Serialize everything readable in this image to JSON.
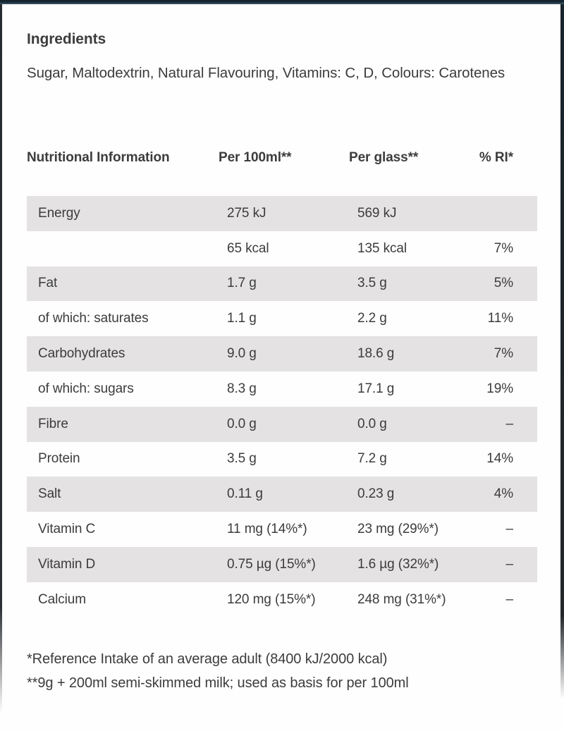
{
  "ingredients": {
    "title": "Ingredients",
    "text": "Sugar, Maltodextrin, Natural Flavouring, Vitamins: C, D, Colours: Carotenes"
  },
  "table": {
    "headers": [
      "Nutritional Information",
      "Per 100ml**",
      "Per glass**",
      "% RI*"
    ],
    "rows": [
      {
        "label": "Energy",
        "per100": "275 kJ",
        "glass": "569 kJ",
        "ri": "",
        "shaded": true
      },
      {
        "label": "",
        "per100": "65 kcal",
        "glass": "135 kcal",
        "ri": "7%",
        "shaded": false
      },
      {
        "label": "Fat",
        "per100": "1.7 g",
        "glass": "3.5 g",
        "ri": "5%",
        "shaded": true
      },
      {
        "label": "of which: saturates",
        "per100": "1.1 g",
        "glass": "2.2 g",
        "ri": "11%",
        "shaded": false
      },
      {
        "label": "Carbohydrates",
        "per100": "9.0 g",
        "glass": "18.6 g",
        "ri": "7%",
        "shaded": true
      },
      {
        "label": "of which: sugars",
        "per100": "8.3 g",
        "glass": "17.1 g",
        "ri": "19%",
        "shaded": false
      },
      {
        "label": "Fibre",
        "per100": "0.0 g",
        "glass": "0.0 g",
        "ri": "–",
        "shaded": true
      },
      {
        "label": "Protein",
        "per100": "3.5 g",
        "glass": "7.2 g",
        "ri": "14%",
        "shaded": false
      },
      {
        "label": "Salt",
        "per100": "0.11 g",
        "glass": "0.23 g",
        "ri": "4%",
        "shaded": true
      },
      {
        "label": "Vitamin C",
        "per100": "11 mg (14%*)",
        "glass": "23 mg (29%*)",
        "ri": "–",
        "shaded": false
      },
      {
        "label": "Vitamin D",
        "per100": "0.75 µg (15%*)",
        "glass": "1.6 µg (32%*)",
        "ri": "–",
        "shaded": true
      },
      {
        "label": "Calcium",
        "per100": "120 mg (15%*)",
        "glass": "248 mg (31%*)",
        "ri": "–",
        "shaded": false
      }
    ]
  },
  "footnotes": [
    "*Reference Intake of an average adult (8400 kJ/2000 kcal)",
    "**9g + 200ml semi-skimmed milk; used as basis for per 100ml"
  ],
  "colors": {
    "shaded_row": "#e4e2e3",
    "text": "#3c3c3c",
    "frame_top": "#16222c"
  }
}
